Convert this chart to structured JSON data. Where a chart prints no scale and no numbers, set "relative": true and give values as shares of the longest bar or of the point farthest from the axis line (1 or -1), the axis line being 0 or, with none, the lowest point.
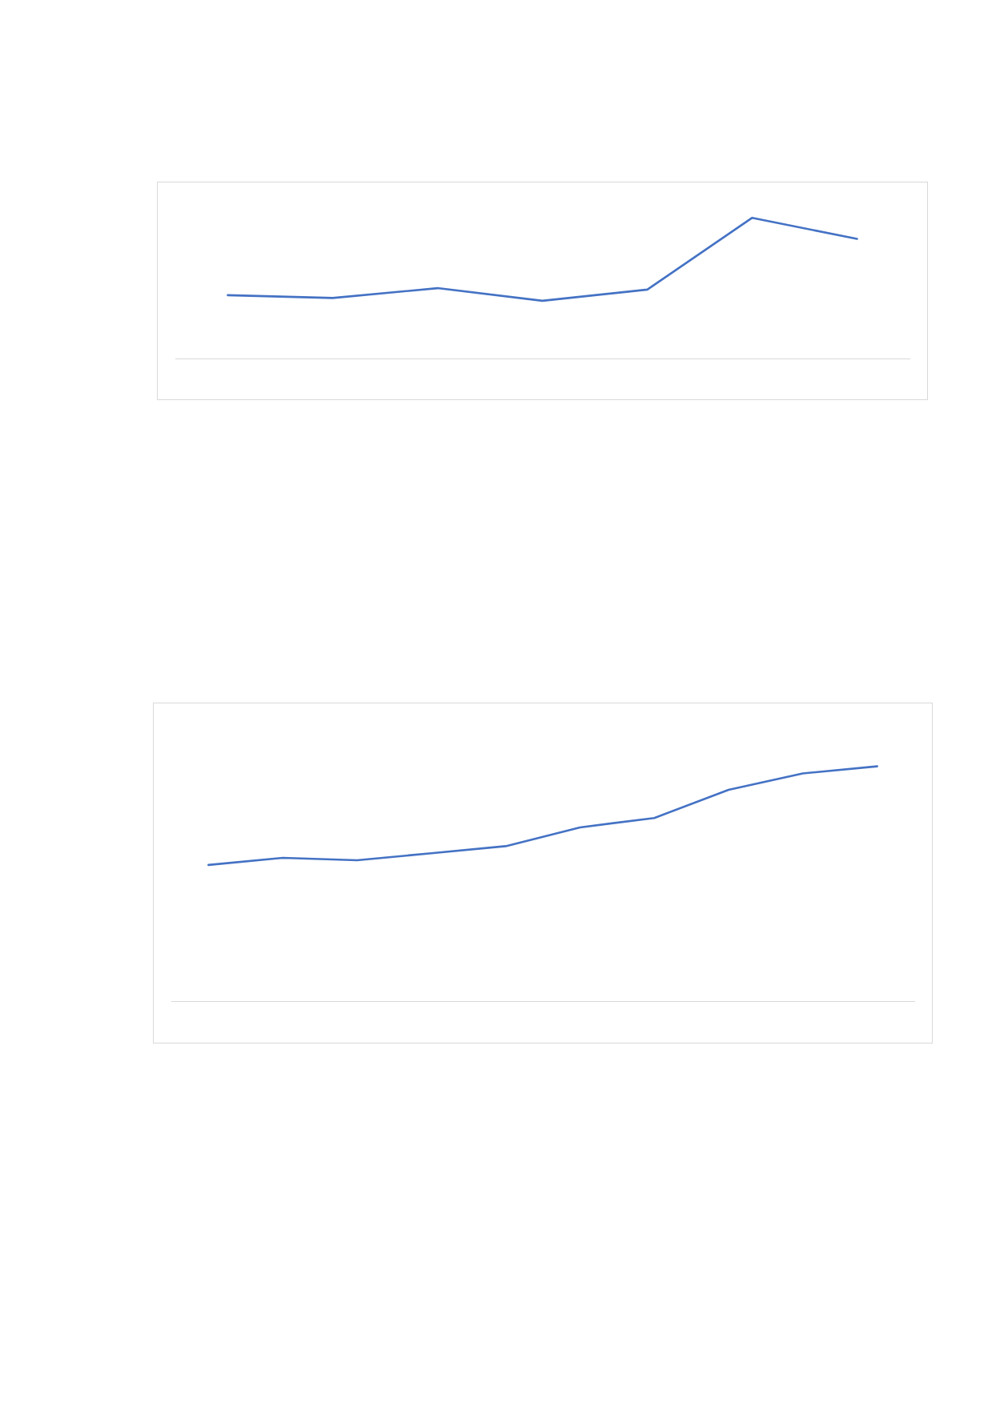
{
  "chart_data": [
    {
      "type": "line",
      "relative": true,
      "categories": [
        null,
        null,
        null,
        null,
        null,
        null,
        null
      ],
      "values": [
        0.45,
        0.43,
        0.5,
        0.41,
        0.49,
        1,
        0.85
      ],
      "color": "#4472c4"
    },
    {
      "type": "line",
      "relative": true,
      "categories": [
        null,
        null,
        null,
        null,
        null,
        null,
        null,
        null,
        null,
        null
      ],
      "values": [
        0.58,
        0.61,
        0.6,
        0.63,
        0.66,
        0.74,
        0.78,
        0.9,
        0.97,
        1
      ],
      "color": "#4472c4"
    }
  ]
}
